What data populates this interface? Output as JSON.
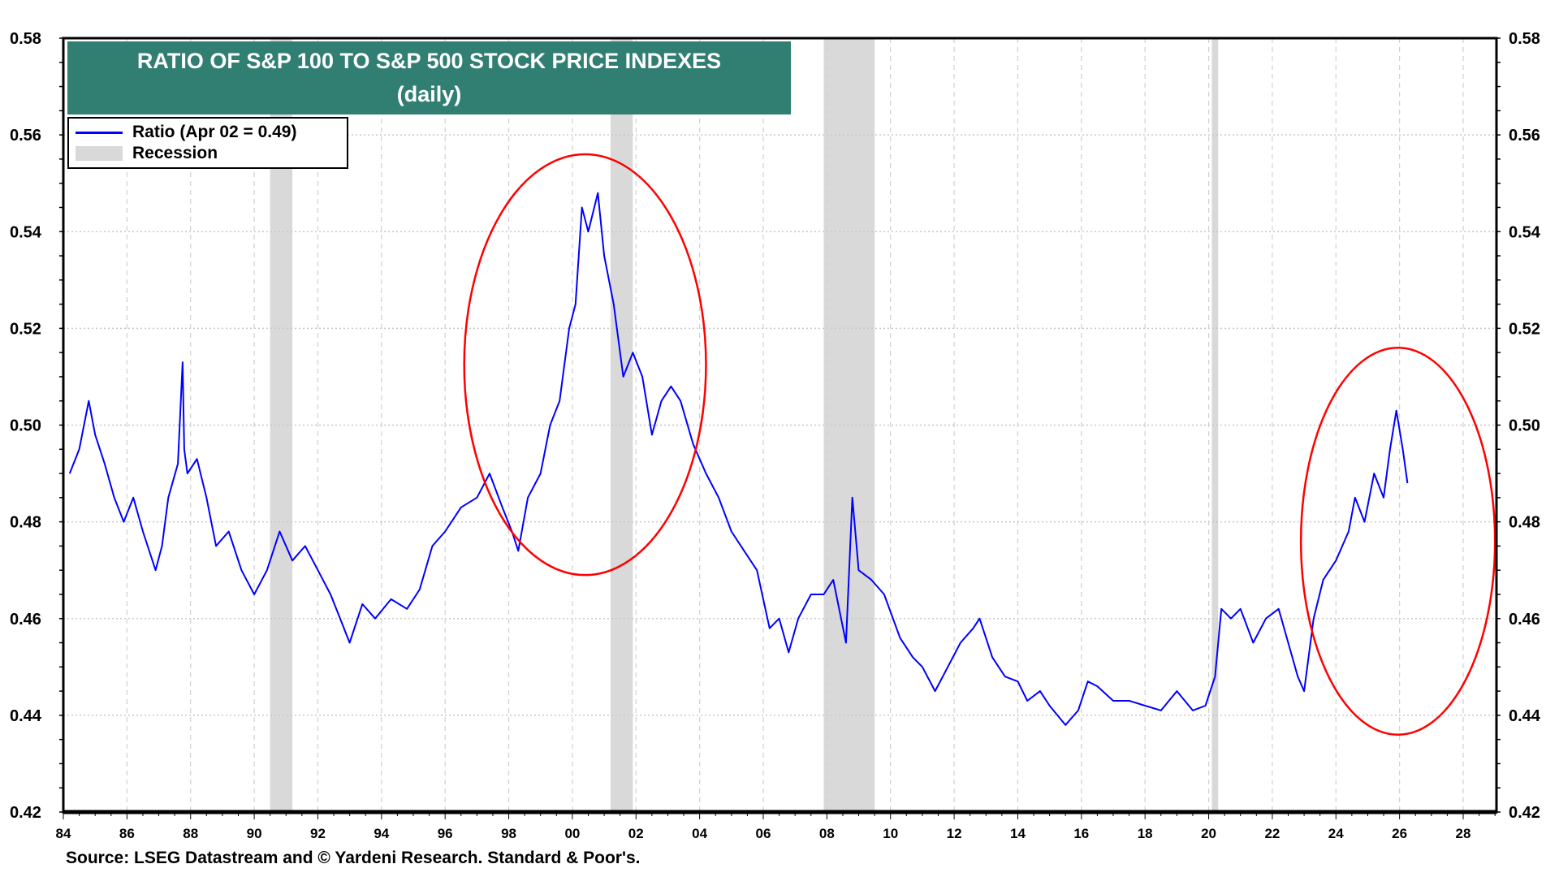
{
  "chart_data": {
    "type": "line",
    "title": "RATIO OF S&P 100 TO S&P 500 STOCK PRICE INDEXES",
    "subtitle": "(daily)",
    "xlabel": "",
    "ylabel": "",
    "xlim": [
      1984,
      2029
    ],
    "ylim": [
      0.42,
      0.58
    ],
    "y_ticks": [
      "0.42",
      "0.44",
      "0.46",
      "0.48",
      "0.50",
      "0.52",
      "0.54",
      "0.56",
      "0.58"
    ],
    "x_ticks": [
      "84",
      "86",
      "88",
      "90",
      "92",
      "94",
      "96",
      "98",
      "00",
      "02",
      "04",
      "06",
      "08",
      "10",
      "12",
      "14",
      "16",
      "18",
      "20",
      "22",
      "24",
      "26",
      "28"
    ],
    "grid": true,
    "legend_position": "top-left",
    "legend": [
      "Ratio (Apr 02 = 0.49)",
      "Recession"
    ],
    "series": [
      {
        "name": "Ratio (Apr 02 = 0.49)",
        "color": "#0000ff",
        "x": [
          1984.2,
          1984.5,
          1984.8,
          1985.0,
          1985.3,
          1985.6,
          1985.9,
          1986.2,
          1986.5,
          1986.9,
          1987.1,
          1987.3,
          1987.6,
          1987.75,
          1987.8,
          1987.9,
          1988.2,
          1988.5,
          1988.8,
          1989.2,
          1989.6,
          1990.0,
          1990.4,
          1990.8,
          1991.2,
          1991.6,
          1992.0,
          1992.4,
          1992.7,
          1993.0,
          1993.4,
          1993.8,
          1994.3,
          1994.8,
          1995.2,
          1995.6,
          1996.0,
          1996.5,
          1997.0,
          1997.4,
          1997.8,
          1998.1,
          1998.3,
          1998.6,
          1999.0,
          1999.3,
          1999.6,
          1999.9,
          2000.1,
          2000.3,
          2000.5,
          2000.8,
          2001.0,
          2001.3,
          2001.6,
          2001.9,
          2002.2,
          2002.5,
          2002.8,
          2003.1,
          2003.4,
          2003.8,
          2004.2,
          2004.6,
          2005.0,
          2005.4,
          2005.8,
          2006.2,
          2006.5,
          2006.8,
          2007.1,
          2007.5,
          2007.9,
          2008.2,
          2008.6,
          2008.8,
          2009.0,
          2009.4,
          2009.8,
          2010.3,
          2010.7,
          2011.0,
          2011.4,
          2011.8,
          2012.2,
          2012.6,
          2012.8,
          2013.2,
          2013.6,
          2014.0,
          2014.3,
          2014.7,
          2015.0,
          2015.5,
          2015.9,
          2016.2,
          2016.5,
          2017.0,
          2017.5,
          2018.0,
          2018.5,
          2019.0,
          2019.5,
          2019.9,
          2020.2,
          2020.4,
          2020.7,
          2021.0,
          2021.4,
          2021.8,
          2022.2,
          2022.5,
          2022.8,
          2023.0,
          2023.3,
          2023.6,
          2024.0,
          2024.4,
          2024.6,
          2024.9,
          2025.2,
          2025.5,
          2025.7,
          2025.9,
          2026.1,
          2026.25
        ],
        "y": [
          0.49,
          0.495,
          0.505,
          0.498,
          0.492,
          0.485,
          0.48,
          0.485,
          0.478,
          0.47,
          0.475,
          0.485,
          0.492,
          0.513,
          0.495,
          0.49,
          0.493,
          0.485,
          0.475,
          0.478,
          0.47,
          0.465,
          0.47,
          0.478,
          0.472,
          0.475,
          0.47,
          0.465,
          0.46,
          0.455,
          0.463,
          0.46,
          0.464,
          0.462,
          0.466,
          0.475,
          0.478,
          0.483,
          0.485,
          0.49,
          0.483,
          0.478,
          0.474,
          0.485,
          0.49,
          0.5,
          0.505,
          0.52,
          0.525,
          0.545,
          0.54,
          0.548,
          0.535,
          0.525,
          0.51,
          0.515,
          0.51,
          0.498,
          0.505,
          0.508,
          0.505,
          0.496,
          0.49,
          0.485,
          0.478,
          0.474,
          0.47,
          0.458,
          0.46,
          0.453,
          0.46,
          0.465,
          0.465,
          0.468,
          0.455,
          0.485,
          0.47,
          0.468,
          0.465,
          0.456,
          0.452,
          0.45,
          0.445,
          0.45,
          0.455,
          0.458,
          0.46,
          0.452,
          0.448,
          0.447,
          0.443,
          0.445,
          0.442,
          0.438,
          0.441,
          0.447,
          0.446,
          0.443,
          0.443,
          0.442,
          0.441,
          0.445,
          0.441,
          0.442,
          0.448,
          0.462,
          0.46,
          0.462,
          0.455,
          0.46,
          0.462,
          0.455,
          0.448,
          0.445,
          0.46,
          0.468,
          0.472,
          0.478,
          0.485,
          0.48,
          0.49,
          0.485,
          0.495,
          0.503,
          0.495,
          0.488
        ]
      }
    ],
    "recessions": [
      [
        1990.5,
        1991.2
      ],
      [
        2001.2,
        2001.9
      ],
      [
        2007.9,
        2009.5
      ],
      [
        2020.1,
        2020.3
      ]
    ],
    "annotations": [
      {
        "shape": "ellipse",
        "color": "#ff0000",
        "x_range": [
          1996.6,
          2004.2
        ],
        "y_range": [
          0.469,
          0.556
        ]
      },
      {
        "shape": "ellipse",
        "color": "#ff0000",
        "x_range": [
          2022.9,
          2029.0
        ],
        "y_range": [
          0.436,
          0.516
        ]
      }
    ],
    "recession_color": "#d9d9d9",
    "title_bg_color": "#317f72"
  },
  "source": "Source: LSEG Datastream and © Yardeni Research. Standard & Poor's."
}
